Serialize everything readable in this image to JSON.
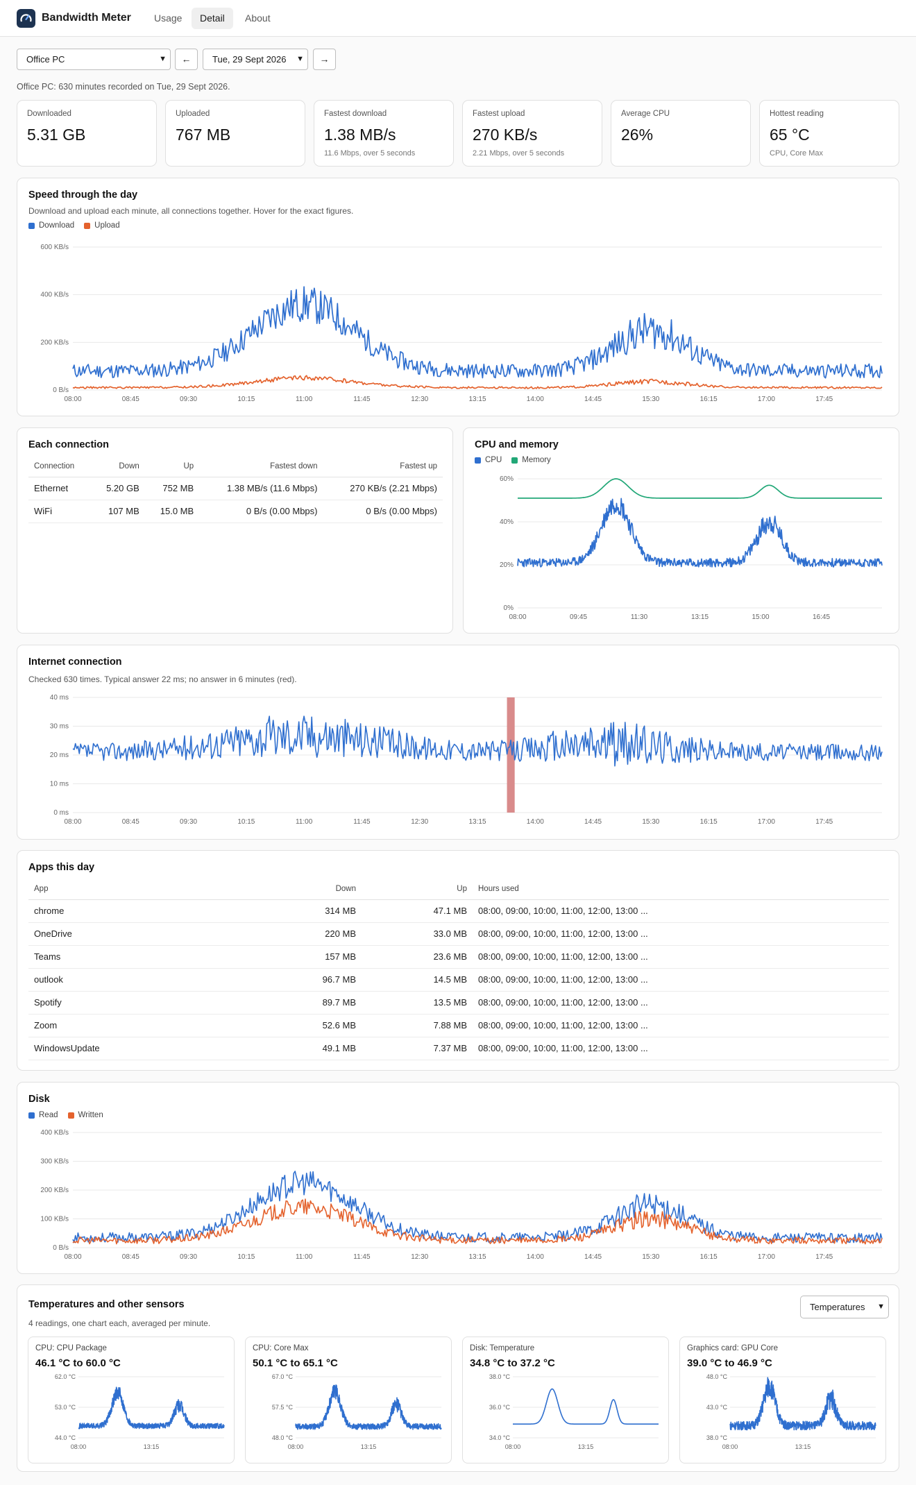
{
  "app": {
    "title": "Bandwidth Meter",
    "tabs": [
      "Usage",
      "Detail",
      "About"
    ],
    "active_tab": "Detail"
  },
  "controls": {
    "device": "Office PC",
    "prev_label": "←",
    "date": "Tue, 29 Sept 2026",
    "next_label": "→"
  },
  "summary": "Office PC: 630 minutes recorded on Tue, 29 Sept 2026.",
  "stats": [
    {
      "label": "Downloaded",
      "value": "5.31 GB",
      "sub": ""
    },
    {
      "label": "Uploaded",
      "value": "767 MB",
      "sub": ""
    },
    {
      "label": "Fastest download",
      "value": "1.38 MB/s",
      "sub": "11.6 Mbps, over 5 seconds"
    },
    {
      "label": "Fastest upload",
      "value": "270 KB/s",
      "sub": "2.21 Mbps, over 5 seconds"
    },
    {
      "label": "Average CPU",
      "value": "26%",
      "sub": ""
    },
    {
      "label": "Hottest reading",
      "value": "65 °C",
      "sub": "CPU, Core Max"
    }
  ],
  "speed": {
    "title": "Speed through the day",
    "desc": "Download and upload each minute, all connections together. Hover for the exact figures."
  },
  "connections": {
    "title": "Each connection",
    "headers": [
      "Connection",
      "Down",
      "Up",
      "Fastest down",
      "Fastest up"
    ],
    "rows": [
      [
        "Ethernet",
        "5.20 GB",
        "752 MB",
        "1.38 MB/s (11.6 Mbps)",
        "270 KB/s (2.21 Mbps)"
      ],
      [
        "WiFi",
        "107 MB",
        "15.0 MB",
        "0 B/s (0.00 Mbps)",
        "0 B/s (0.00 Mbps)"
      ]
    ]
  },
  "cpu_mem": {
    "title": "CPU and memory"
  },
  "internet": {
    "title": "Internet connection",
    "desc": "Checked 630 times. Typical answer 22 ms; no answer in 6 minutes (red)."
  },
  "apps": {
    "title": "Apps this day",
    "headers": [
      "App",
      "Down",
      "Up",
      "Hours used"
    ],
    "rows": [
      [
        "chrome",
        "314 MB",
        "47.1 MB",
        "08:00, 09:00, 10:00, 11:00, 12:00, 13:00 ..."
      ],
      [
        "OneDrive",
        "220 MB",
        "33.0 MB",
        "08:00, 09:00, 10:00, 11:00, 12:00, 13:00 ..."
      ],
      [
        "Teams",
        "157 MB",
        "23.6 MB",
        "08:00, 09:00, 10:00, 11:00, 12:00, 13:00 ..."
      ],
      [
        "outlook",
        "96.7 MB",
        "14.5 MB",
        "08:00, 09:00, 10:00, 11:00, 12:00, 13:00 ..."
      ],
      [
        "Spotify",
        "89.7 MB",
        "13.5 MB",
        "08:00, 09:00, 10:00, 11:00, 12:00, 13:00 ..."
      ],
      [
        "Zoom",
        "52.6 MB",
        "7.88 MB",
        "08:00, 09:00, 10:00, 11:00, 12:00, 13:00 ..."
      ],
      [
        "WindowsUpdate",
        "49.1 MB",
        "7.37 MB",
        "08:00, 09:00, 10:00, 11:00, 12:00, 13:00 ..."
      ]
    ]
  },
  "disk": {
    "title": "Disk"
  },
  "sensors": {
    "title": "Temperatures and other sensors",
    "desc": "4 readings, one chart each, averaged per minute.",
    "select": "Temperatures",
    "cards": [
      {
        "title": "CPU: CPU Package",
        "range": "46.1 °C to 60.0 °C"
      },
      {
        "title": "CPU: Core Max",
        "range": "50.1 °C to 65.1 °C"
      },
      {
        "title": "Disk: Temperature",
        "range": "34.8 °C to 37.2 °C"
      },
      {
        "title": "Graphics card: GPU Core",
        "range": "39.0 °C to 46.9 °C"
      }
    ]
  },
  "colors": {
    "download": "#2f6fcf",
    "upload": "#e4622d",
    "cpu": "#2f6fcf",
    "memory": "#21a777",
    "outage": "#d98b8b"
  },
  "chart_data": [
    {
      "id": "speed",
      "type": "line",
      "x_start": "08:00",
      "x_end": "18:30",
      "step_minutes": 1,
      "x_ticks": [
        "08:00",
        "08:45",
        "09:30",
        "10:15",
        "11:00",
        "11:45",
        "12:30",
        "13:15",
        "14:00",
        "14:45",
        "15:30",
        "16:15",
        "17:00",
        "17:45"
      ],
      "y_ticks": [
        "0 B/s",
        "200 KB/s",
        "400 KB/s",
        "600 KB/s"
      ],
      "ylim": [
        0,
        600
      ],
      "series": [
        {
          "name": "Download",
          "base": 80,
          "noise": 30,
          "peaks": [
            [
              180,
              280,
              55
            ],
            [
              450,
              170,
              40
            ]
          ]
        },
        {
          "name": "Upload",
          "base": 10,
          "noise": 4,
          "peaks": [
            [
              180,
              40,
              55
            ],
            [
              450,
              25,
              40
            ]
          ]
        }
      ]
    },
    {
      "id": "cpumem",
      "type": "line",
      "x_ticks": [
        "08:00",
        "09:45",
        "11:30",
        "13:15",
        "15:00",
        "16:45"
      ],
      "y_ticks": [
        "0%",
        "20%",
        "40%",
        "60%"
      ],
      "ylim": [
        0,
        60
      ],
      "series": [
        {
          "name": "CPU",
          "base": 21,
          "noise": 2,
          "peaks": [
            [
              170,
              28,
              35
            ],
            [
              435,
              19,
              30
            ]
          ]
        },
        {
          "name": "Memory",
          "base": 51,
          "noise": 0,
          "peaks": [
            [
              170,
              9,
              30
            ],
            [
              435,
              6,
              22
            ]
          ]
        }
      ]
    },
    {
      "id": "ping",
      "type": "line",
      "x_ticks": [
        "08:00",
        "08:45",
        "09:30",
        "10:15",
        "11:00",
        "11:45",
        "12:30",
        "13:15",
        "14:00",
        "14:45",
        "15:30",
        "16:15",
        "17:00",
        "17:45"
      ],
      "y_ticks": [
        "0 ms",
        "10 ms",
        "20 ms",
        "30 ms",
        "40 ms"
      ],
      "ylim": [
        0,
        40
      ],
      "outage": [
        338,
        344
      ],
      "series": [
        {
          "name": "Ping",
          "base": 21,
          "noise": 3,
          "peaks": [
            [
              180,
              6,
              80
            ],
            [
              420,
              3,
              60
            ]
          ]
        }
      ]
    },
    {
      "id": "disk",
      "type": "line",
      "x_ticks": [
        "08:00",
        "08:45",
        "09:30",
        "10:15",
        "11:00",
        "11:45",
        "12:30",
        "13:15",
        "14:00",
        "14:45",
        "15:30",
        "16:15",
        "17:00",
        "17:45"
      ],
      "y_ticks": [
        "0 B/s",
        "100 KB/s",
        "200 KB/s",
        "300 KB/s",
        "400 KB/s"
      ],
      "ylim": [
        0,
        400
      ],
      "series": [
        {
          "name": "Read",
          "base": 35,
          "noise": 17,
          "peaks": [
            [
              180,
              190,
              55
            ],
            [
              450,
              115,
              40
            ]
          ]
        },
        {
          "name": "Written",
          "base": 25,
          "noise": 12,
          "peaks": [
            [
              180,
              115,
              55
            ],
            [
              450,
              75,
              40
            ]
          ]
        }
      ]
    },
    {
      "id": "t0",
      "type": "line",
      "x_ticks": [
        "08:00",
        "13:15"
      ],
      "y_ticks": [
        "44.0 °C",
        "53.0 °C",
        "62.0 °C"
      ],
      "ylim": [
        44,
        62
      ],
      "series": [
        {
          "name": "CPU: CPU Package",
          "base": 47.5,
          "noise": 0.8,
          "peaks": [
            [
              170,
              10,
              35
            ],
            [
              435,
              6,
              30
            ]
          ]
        }
      ]
    },
    {
      "id": "t1",
      "type": "line",
      "x_ticks": [
        "08:00",
        "13:15"
      ],
      "y_ticks": [
        "48.0 °C",
        "57.5 °C",
        "67.0 °C"
      ],
      "ylim": [
        48,
        67
      ],
      "series": [
        {
          "name": "CPU: Core Max",
          "base": 51.5,
          "noise": 0.9,
          "peaks": [
            [
              170,
              11,
              35
            ],
            [
              435,
              7,
              30
            ]
          ]
        }
      ]
    },
    {
      "id": "t2",
      "type": "line",
      "x_ticks": [
        "08:00",
        "13:15"
      ],
      "y_ticks": [
        "34.0 °C",
        "36.0 °C",
        "38.0 °C"
      ],
      "ylim": [
        34,
        38
      ],
      "series": [
        {
          "name": "Disk: Temperature",
          "base": 34.9,
          "noise": 0,
          "peaks": [
            [
              170,
              2.3,
              35
            ],
            [
              435,
              1.6,
              22
            ]
          ]
        }
      ]
    },
    {
      "id": "t3",
      "type": "line",
      "x_ticks": [
        "08:00",
        "13:15"
      ],
      "y_ticks": [
        "38.0 °C",
        "43.0 °C",
        "48.0 °C"
      ],
      "ylim": [
        38,
        48
      ],
      "series": [
        {
          "name": "Graphics card: GPU Core",
          "base": 40,
          "noise": 0.7,
          "peaks": [
            [
              170,
              6.5,
              35
            ],
            [
              435,
              4.5,
              30
            ]
          ]
        }
      ]
    }
  ]
}
